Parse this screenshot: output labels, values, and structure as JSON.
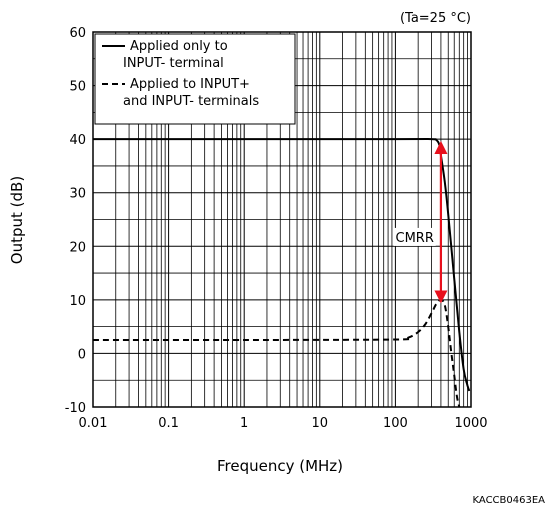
{
  "chart_data": {
    "type": "line",
    "condition_note": "(Ta=25 °C)",
    "xlabel": "Frequency (MHz)",
    "ylabel": "Output (dB)",
    "x_scale": "log",
    "xlim": [
      0.01,
      1000
    ],
    "ylim": [
      -10,
      60
    ],
    "x_ticks": [
      {
        "value": 0.01,
        "label": "0.01"
      },
      {
        "value": 0.1,
        "label": "0.1"
      },
      {
        "value": 1,
        "label": "1"
      },
      {
        "value": 10,
        "label": "10"
      },
      {
        "value": 100,
        "label": "100"
      },
      {
        "value": 1000,
        "label": "1000"
      }
    ],
    "y_ticks": [
      {
        "value": -10,
        "label": "-10"
      },
      {
        "value": 0,
        "label": "0"
      },
      {
        "value": 10,
        "label": "10"
      },
      {
        "value": 20,
        "label": "20"
      },
      {
        "value": 30,
        "label": "30"
      },
      {
        "value": 40,
        "label": "40"
      },
      {
        "value": 50,
        "label": "50"
      },
      {
        "value": 60,
        "label": "60"
      }
    ],
    "grid": true,
    "legend_position": "top-left",
    "series": [
      {
        "name_lines": [
          "Applied only to",
          "INPUT- terminal"
        ],
        "style": "solid",
        "color": "#000000",
        "x": [
          0.01,
          1,
          100,
          300,
          350,
          380,
          400,
          450,
          500,
          600,
          700,
          800,
          900,
          950
        ],
        "y": [
          40,
          40,
          40,
          40,
          39.8,
          39,
          37,
          32,
          26,
          14,
          4,
          -3,
          -6,
          -7
        ]
      },
      {
        "name_lines": [
          "Applied to INPUT+",
          "and INPUT- terminals"
        ],
        "style": "dashed",
        "color": "#000000",
        "x": [
          0.01,
          1,
          100,
          150,
          200,
          250,
          300,
          350,
          400,
          450,
          500,
          550,
          600,
          650,
          700
        ],
        "y": [
          2.5,
          2.5,
          2.6,
          3,
          4,
          5.5,
          7.5,
          9.3,
          10,
          9,
          5,
          0,
          -4,
          -8,
          -10
        ]
      }
    ],
    "annotations": [
      {
        "text": "CMRR",
        "arrow_x": 400,
        "arrow_y_from": 10,
        "arrow_y_to": 39,
        "label_x": 180,
        "label_y": 21,
        "color": "#e8101d"
      }
    ]
  },
  "figure_code": "KACCB0463EA"
}
